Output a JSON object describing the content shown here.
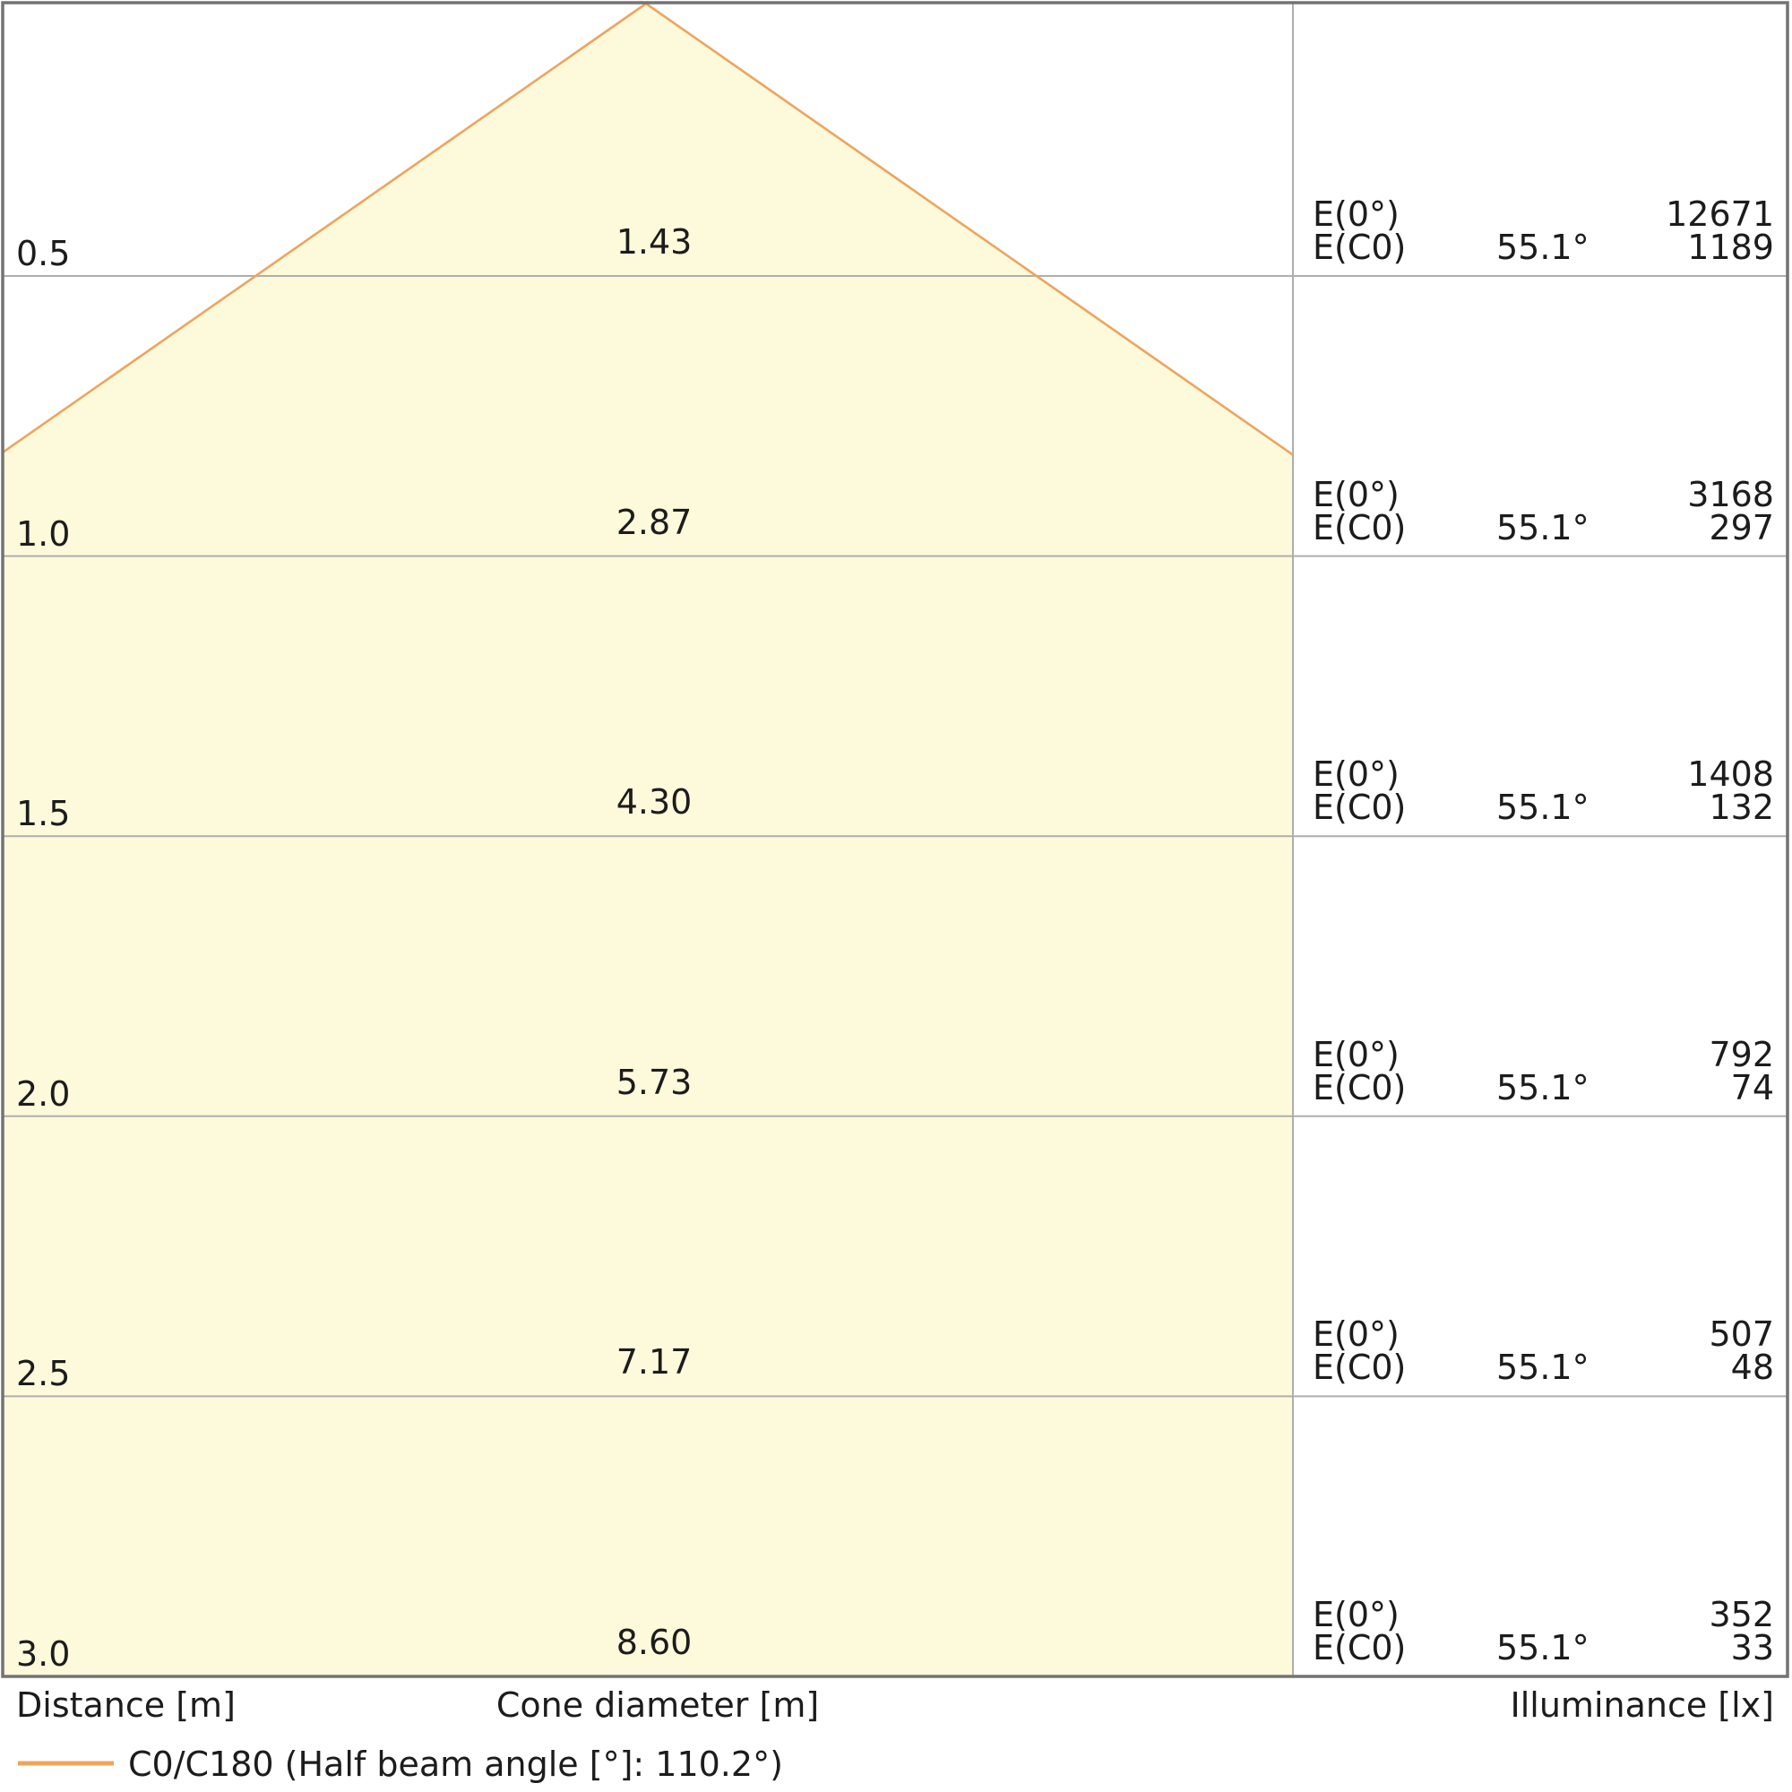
{
  "diagram": {
    "axis_labels": {
      "distance": "Distance [m]",
      "cone_diameter": "Cone diameter [m]",
      "illuminance": "Illuminance [lx]"
    },
    "legend": {
      "label": "C0/C180 (Half beam angle [°]: 110.2°)"
    },
    "right_column": {
      "e0_label": "E(0°)",
      "ec0_label": "E(C0)"
    },
    "rows": [
      {
        "distance": "0.5",
        "cone_diameter": "1.43",
        "angle": "55.1°",
        "e0": "12671",
        "ec0": "1189"
      },
      {
        "distance": "1.0",
        "cone_diameter": "2.87",
        "angle": "55.1°",
        "e0": "3168",
        "ec0": "297"
      },
      {
        "distance": "1.5",
        "cone_diameter": "4.30",
        "angle": "55.1°",
        "e0": "1408",
        "ec0": "132"
      },
      {
        "distance": "2.0",
        "cone_diameter": "5.73",
        "angle": "55.1°",
        "e0": "792",
        "ec0": "74"
      },
      {
        "distance": "2.5",
        "cone_diameter": "7.17",
        "angle": "55.1°",
        "e0": "507",
        "ec0": "48"
      },
      {
        "distance": "3.0",
        "cone_diameter": "8.60",
        "angle": "55.1°",
        "e0": "352",
        "ec0": "33"
      }
    ]
  },
  "colors": {
    "cone_fill": "#FDFADB",
    "beam_line": "#EFA45C",
    "grid_line": "#AEAEAE",
    "frame": "#737373",
    "text": "#1C1C1C",
    "background": "#FFFFFF"
  },
  "chart_data": {
    "type": "area",
    "subtype": "light-cone-diagram",
    "title": "",
    "xlabel": "Cone diameter [m]",
    "ylabel": "Distance [m]",
    "legend_entries": [
      "C0/C180 (Half beam angle [°]: 110.2°)"
    ],
    "legend_position": "bottom-left",
    "grid": true,
    "beam": {
      "curve": "C0/C180",
      "half_beam_angle_deg": 110.2,
      "cone_half_angle_deg": 55.1
    },
    "distances_m": [
      0.5,
      1.0,
      1.5,
      2.0,
      2.5,
      3.0
    ],
    "cone_diameters_m": [
      1.43,
      2.87,
      4.3,
      5.73,
      7.17,
      8.6
    ],
    "illuminance_E0_lx": [
      12671,
      3168,
      1408,
      792,
      507,
      352
    ],
    "illuminance_EC0_lx": [
      1189,
      297,
      132,
      74,
      48,
      33
    ],
    "EC0_angle_deg": 55.1,
    "axis_ranges": {
      "distance_m": [
        0,
        3.0
      ]
    },
    "column_headers": [
      "Distance [m]",
      "Cone diameter [m]",
      "Illuminance [lx]"
    ]
  }
}
